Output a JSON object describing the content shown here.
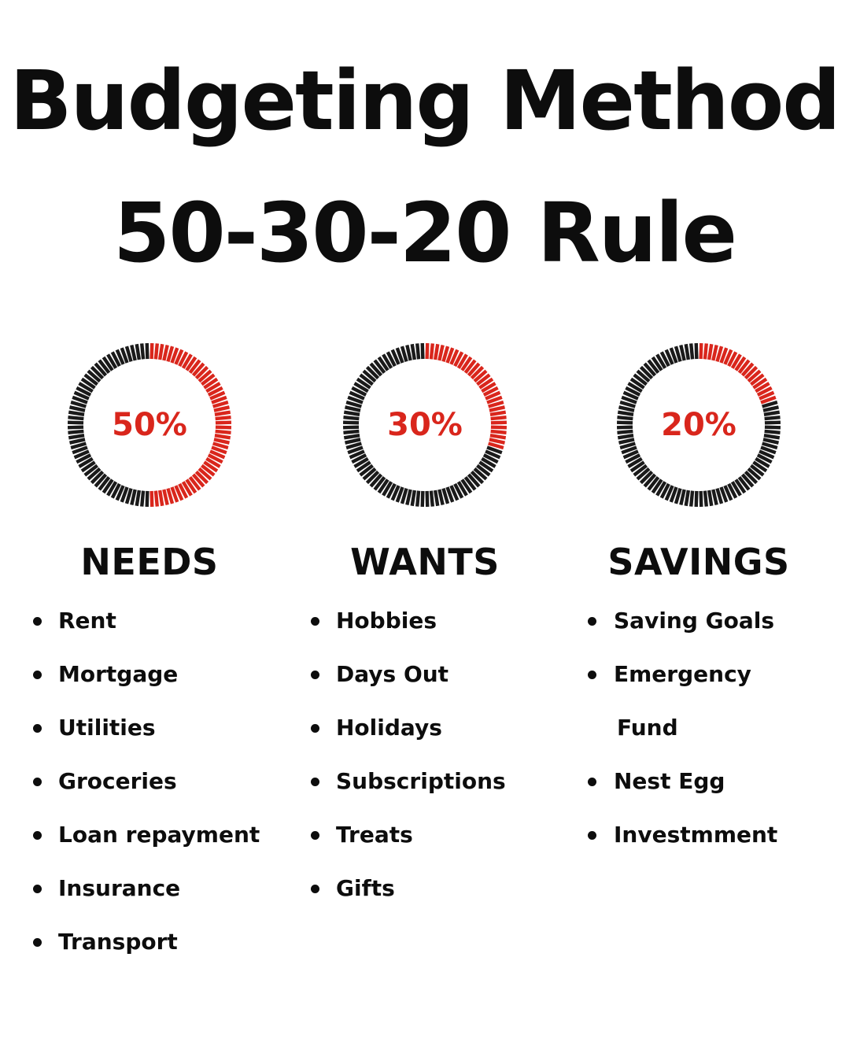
{
  "title": {
    "line1": "Budgeting Method",
    "line2": "50-30-20 Rule"
  },
  "colors": {
    "accent": "#d9261c",
    "dark": "#1a1a1a",
    "text": "#0d0d0d"
  },
  "columns": [
    {
      "key": "needs",
      "percent_label": "50%",
      "fraction": 0.5,
      "category": "NEEDS",
      "items": [
        "Rent",
        "Mortgage",
        "Utilities",
        "Groceries",
        "Loan repayment",
        "Insurance",
        "Transport"
      ]
    },
    {
      "key": "wants",
      "percent_label": "30%",
      "fraction": 0.3,
      "category": "WANTS",
      "items": [
        "Hobbies",
        "Days Out",
        "Holidays",
        "Subscriptions",
        "Treats",
        "Gifts"
      ]
    },
    {
      "key": "savings",
      "percent_label": "20%",
      "fraction": 0.2,
      "category": "SAVINGS",
      "items": [
        "Saving Goals",
        "Emergency",
        "Fund",
        "Nest Egg",
        "Investmment"
      ],
      "continuation_indices": [
        2
      ]
    }
  ]
}
